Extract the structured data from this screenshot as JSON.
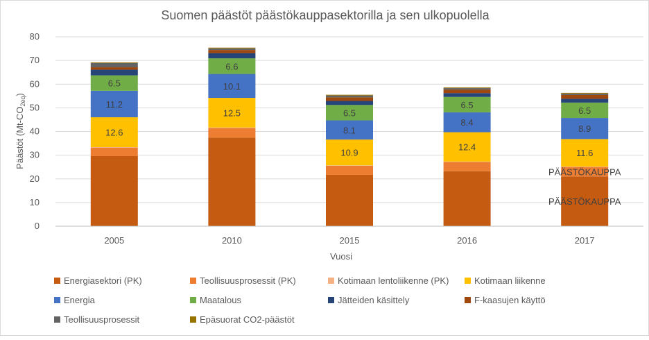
{
  "chart_data": {
    "type": "bar",
    "stacked": true,
    "title": "Suomen päästöt päästökauppasektorilla ja sen ulkopuolella",
    "xlabel": "Vuosi",
    "ylabel": "Päästöt (Mt-CO2eq)",
    "ylabel_main": "Päästöt (Mt-CO",
    "ylabel_sub": "2eq",
    "ylabel_end": ")",
    "ylim": [
      0,
      80
    ],
    "yticks": [
      0,
      10,
      20,
      30,
      40,
      50,
      60,
      70,
      80
    ],
    "grid": true,
    "legend_position": "bottom",
    "categories": [
      "2005",
      "2010",
      "2015",
      "2016",
      "2017"
    ],
    "series": [
      {
        "name": "Energiasektori (PK)",
        "color": "#c55a11",
        "values": [
          29.6,
          37.4,
          21.7,
          23.2,
          21.0
        ],
        "labels": [
          null,
          null,
          null,
          null,
          "PÄÄSTÖKAUPPA"
        ]
      },
      {
        "name": "Teollisuusprosessit (PK)",
        "color": "#ed7d31",
        "values": [
          3.6,
          4.1,
          3.8,
          3.9,
          4.0
        ],
        "labels": [
          null,
          null,
          null,
          null,
          "PÄÄSTÖKAUPPA"
        ]
      },
      {
        "name": "Kotimaan lentoliikenne (PK)",
        "color": "#f4b183",
        "values": [
          0.2,
          0.2,
          0.2,
          0.2,
          0.2
        ],
        "labels": [
          null,
          null,
          null,
          null,
          null
        ]
      },
      {
        "name": "Kotimaan liikenne",
        "color": "#ffc000",
        "values": [
          12.6,
          12.5,
          10.9,
          12.4,
          11.6
        ],
        "labels": [
          "12.6",
          "12.5",
          "10.9",
          "12.4",
          "11.6"
        ]
      },
      {
        "name": "Energia",
        "color": "#4472c4",
        "values": [
          11.2,
          10.1,
          8.1,
          8.4,
          8.9
        ],
        "labels": [
          "11.2",
          "10.1",
          "8.1",
          "8.4",
          "8.9"
        ]
      },
      {
        "name": "Maatalous",
        "color": "#70ad47",
        "values": [
          6.5,
          6.6,
          6.5,
          6.5,
          6.5
        ],
        "labels": [
          "6.5",
          "6.6",
          "6.5",
          "6.5",
          "6.5"
        ]
      },
      {
        "name": "Jätteiden käsittely",
        "color": "#264478",
        "values": [
          2.4,
          2.2,
          1.7,
          1.6,
          1.6
        ],
        "labels": [
          null,
          null,
          null,
          null,
          null
        ]
      },
      {
        "name": "F-kaasujen käyttö",
        "color": "#9e480e",
        "values": [
          1.0,
          1.3,
          1.5,
          1.5,
          1.6
        ],
        "labels": [
          null,
          null,
          null,
          null,
          null
        ]
      },
      {
        "name": "Teollisuusprosessit",
        "color": "#636363",
        "values": [
          1.8,
          0.7,
          0.8,
          0.6,
          0.6
        ],
        "labels": [
          null,
          null,
          null,
          null,
          null
        ]
      },
      {
        "name": "Epäsuorat CO2-päästöt",
        "color": "#997300",
        "values": [
          0.3,
          0.3,
          0.3,
          0.3,
          0.3
        ],
        "labels": [
          null,
          null,
          null,
          null,
          null
        ]
      }
    ]
  }
}
